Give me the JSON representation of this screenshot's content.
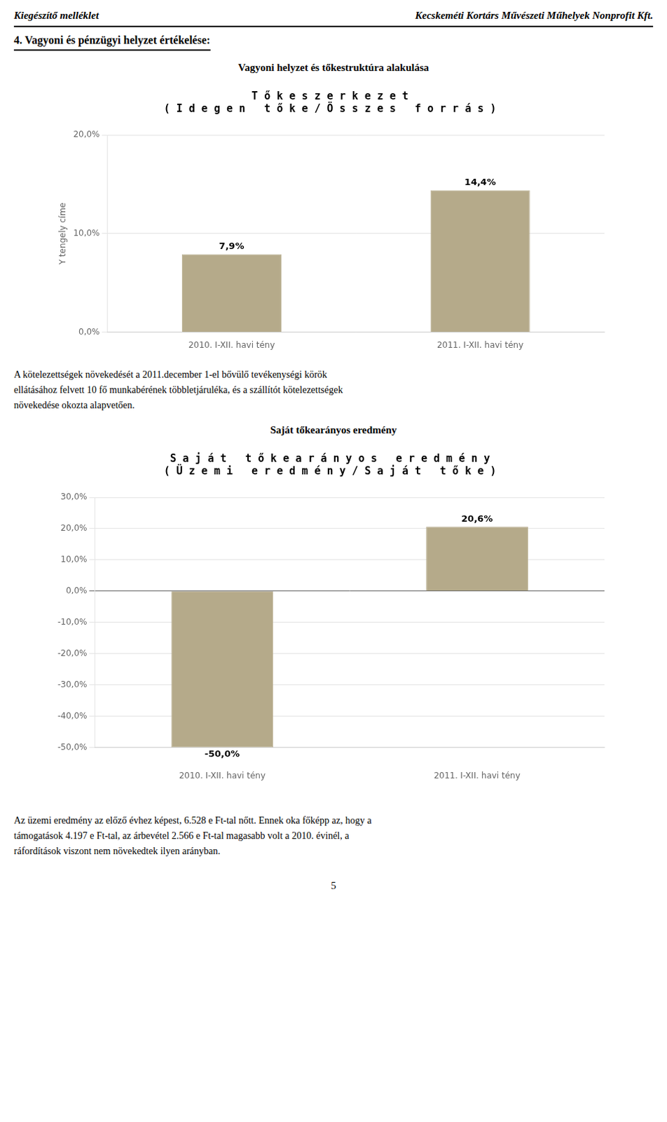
{
  "header_left": "Kiegészítő melléklet",
  "header_right": "Kecskeméti Kortárs Művészeti Műhelyek Nonprofit Kft.",
  "section_title": "4. Vagyoni és pénzügyi helyzet értékelése:",
  "paragraphs": [
    [
      "A kötelezettségek növekedését a 2011.december 1-el bővülő tevékenységi körök",
      "ellátásához felvett 10 fő munkabérének többletjáruléka, és a szállítót kötelezettségek",
      "növekedése okozta alapvetően."
    ],
    [
      "Az üzemi eredmény az előző évhez képest, 6.528 e Ft-tal nőtt. Ennek oka főképp az, hogy a",
      "támogatások 4.197 e Ft-tal, az árbevétel 2.566 e Ft-tal magasabb volt a 2010. évinél, a",
      "ráfordítások viszont nem növekedtek ilyen arányban."
    ]
  ],
  "page_number": "5",
  "chart_data": [
    {
      "type": "bar",
      "heading": "Vagyoni helyzet és tőkestruktúra alakulása",
      "title": "T ő k e s z e r k e z e t\n( I d e g e n   t ő k e / Ö s s z e s   f o r r á s )",
      "ylabel": "Y tengely címe",
      "categories": [
        "2010. I-XII. havi tény",
        "2011. I-XII. havi tény"
      ],
      "values": [
        7.9,
        14.4
      ],
      "value_labels": [
        "7,9%",
        "14,4%"
      ],
      "data_labels": true,
      "color": "#b5aa8a",
      "ylim": [
        0.0,
        20.0
      ],
      "yticks": [
        {
          "value": 0.0,
          "label": "0,0%"
        },
        {
          "value": 10.0,
          "label": "10,0%"
        },
        {
          "value": 20.0,
          "label": "20,0%"
        }
      ],
      "grid": true
    },
    {
      "type": "bar",
      "heading": "Saját tőkearányos eredmény",
      "title": "S a j á t   t ő k e a r á n y o s   e r e d m é n y\n( Ü z e m i   e r e d m é n y / S a j á t   t ő k e )",
      "categories": [
        "2010. I-XII. havi tény",
        "2011. I-XII. havi tény"
      ],
      "values": [
        -50.0,
        20.6
      ],
      "value_labels": [
        "-50,0%",
        "20,6%"
      ],
      "data_labels": true,
      "color": "#b5aa8a",
      "ylim": [
        -50.0,
        30.0
      ],
      "yticks": [
        {
          "value": -50.0,
          "label": "-50,0%"
        },
        {
          "value": -40.0,
          "label": "-40,0%"
        },
        {
          "value": -30.0,
          "label": "-30,0%"
        },
        {
          "value": -20.0,
          "label": "-20,0%"
        },
        {
          "value": -10.0,
          "label": "-10,0%"
        },
        {
          "value": 0.0,
          "label": "0,0%"
        },
        {
          "value": 10.0,
          "label": "10,0%"
        },
        {
          "value": 20.0,
          "label": "20,0%"
        },
        {
          "value": 30.0,
          "label": "30,0%"
        }
      ],
      "grid": true
    }
  ]
}
